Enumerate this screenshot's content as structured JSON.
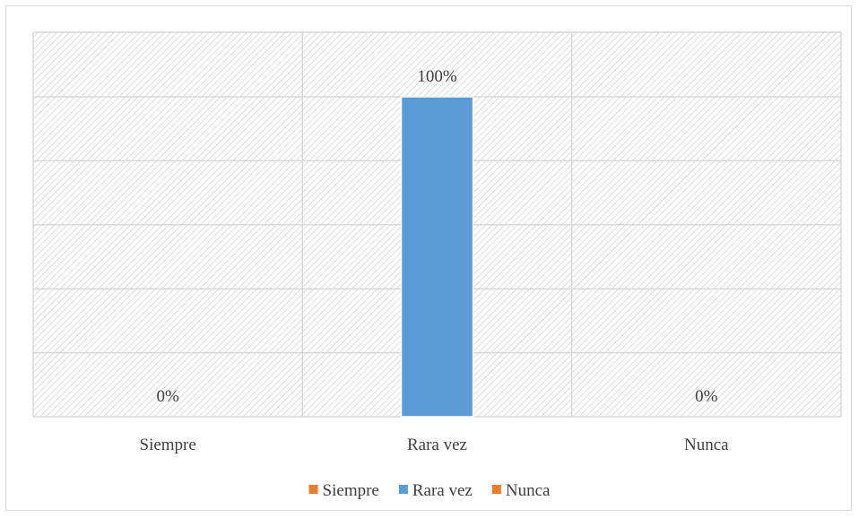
{
  "chart_data": {
    "type": "bar",
    "categories": [
      "Siempre",
      "Rara vez",
      "Nunca"
    ],
    "values": [
      0,
      100,
      0
    ],
    "data_labels": [
      "0%",
      "100%",
      "0%"
    ],
    "ylim": [
      0,
      100
    ],
    "grid": true,
    "legend_position": "bottom",
    "legend": [
      {
        "label": "Siempre",
        "color": "#ed7d31"
      },
      {
        "label": "Rara vez",
        "color": "#5b9bd5"
      },
      {
        "label": "Nunca",
        "color": "#ed7d31"
      }
    ],
    "bar_colors": [
      "#ed7d31",
      "#5b9bd5",
      "#ed7d31"
    ]
  }
}
